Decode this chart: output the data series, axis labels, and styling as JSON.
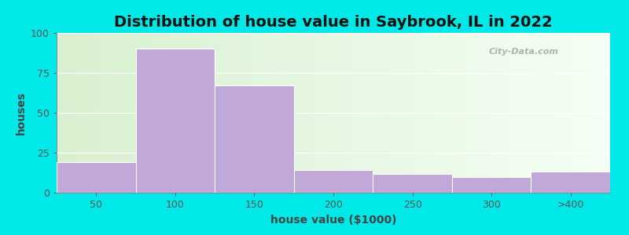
{
  "title": "Distribution of house value in Saybrook, IL in 2022",
  "xlabel": "house value ($1000)",
  "ylabel": "houses",
  "bar_labels": [
    "50",
    "100",
    "150",
    "200",
    "250",
    "300",
    ">400"
  ],
  "bar_values": [
    19,
    90,
    67,
    14,
    12,
    10,
    13
  ],
  "bar_color": "#c0a8d8",
  "bar_edge_color": "#ffffff",
  "ylim": [
    0,
    100
  ],
  "yticks": [
    0,
    25,
    50,
    75,
    100
  ],
  "bg_outer": "#00e8e8",
  "bg_plot_left": "#d8f0d0",
  "bg_plot_right": "#f5fff5",
  "title_fontsize": 14,
  "axis_label_fontsize": 10,
  "tick_fontsize": 9,
  "watermark_text": "City-Data.com",
  "bar_width": 1.0,
  "figsize": [
    8.0,
    3.0
  ],
  "dpi": 100
}
